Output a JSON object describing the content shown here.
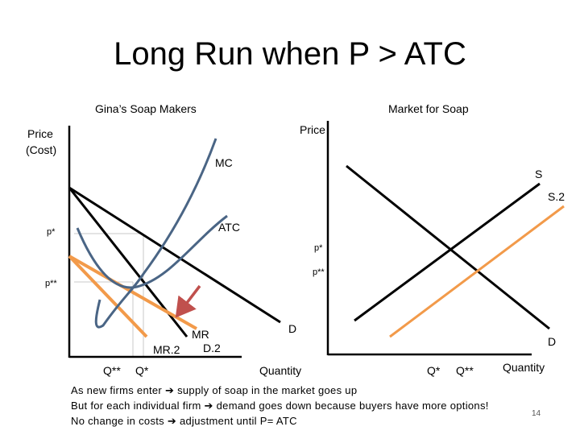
{
  "title": "Long Run when P > ATC",
  "firm": {
    "heading": "Gina’s Soap Makers",
    "y_axis_label_line1": "Price",
    "y_axis_label_line2": "(Cost)",
    "mc_label": "MC",
    "atc_label": "ATC",
    "p_star_label": "p*",
    "p_double_star_label": "p**",
    "mr_label": "MR",
    "d2_label": "D.2",
    "mr2_label": "MR.2",
    "q_double_star_label": "Q**",
    "q_star_label": "Q*"
  },
  "market": {
    "heading": "Market for Soap",
    "y_axis_label": "Price",
    "s_label": "S",
    "s2_label": "S.2",
    "p_star_label": "p*",
    "p_double_star_label": "p**",
    "d_firm_label": "D",
    "d_market_label": "D",
    "quantity_label_firm": "Quantity",
    "q_star_label": "Q*",
    "q_double_star_label": "Q**",
    "quantity_label_market": "Quantity"
  },
  "notes": {
    "line1_a": "As new firms enter",
    "line1_b": "supply of soap in the market goes up",
    "line2_a": "But for each individual firm",
    "line2_b": "demand goes down because buyers have more options!",
    "line3_a": "No change in costs",
    "line3_b": "adjustment until P= ATC"
  },
  "arrow_glyph": "➔",
  "slide_number": "14",
  "colors": {
    "axis": "#000000",
    "cost_curve": "#4a6585",
    "new_curve": "#f29a4a",
    "shift_arrow": "#c0504d",
    "guide": "#c8c8c8"
  }
}
